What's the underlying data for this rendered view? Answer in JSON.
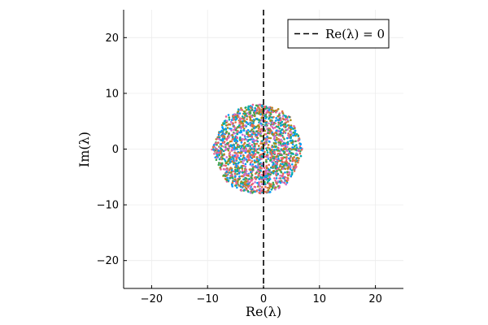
{
  "chart_data": {
    "type": "scatter",
    "title": "",
    "xlabel": "Re(λ)",
    "ylabel": "Im(λ)",
    "xlim": [
      -25,
      25
    ],
    "ylim": [
      -25,
      25
    ],
    "xticks": [
      -20,
      -10,
      0,
      10,
      20
    ],
    "yticks": [
      -20,
      -10,
      0,
      10,
      20
    ],
    "xtick_labels": [
      "−20",
      "−10",
      "0",
      "10",
      "20"
    ],
    "ytick_labels": [
      "−20",
      "−10",
      "0",
      "10",
      "20"
    ],
    "grid": true,
    "legend_position": "top-right",
    "legend_label": "Re(λ) = 0",
    "reference_line": {
      "x": 0,
      "style": "dashed",
      "color": "#000000"
    },
    "scatter_description_region": {
      "center": [
        -1.0,
        0.0
      ],
      "re_range": [
        -9.5,
        7.5
      ],
      "im_range": [
        -8.0,
        8.0
      ]
    },
    "series_colors": [
      "#009AFA",
      "#E36F47",
      "#3EA44E",
      "#C371D2",
      "#AC8E18",
      "#00AAAE",
      "#ED5E93"
    ]
  }
}
